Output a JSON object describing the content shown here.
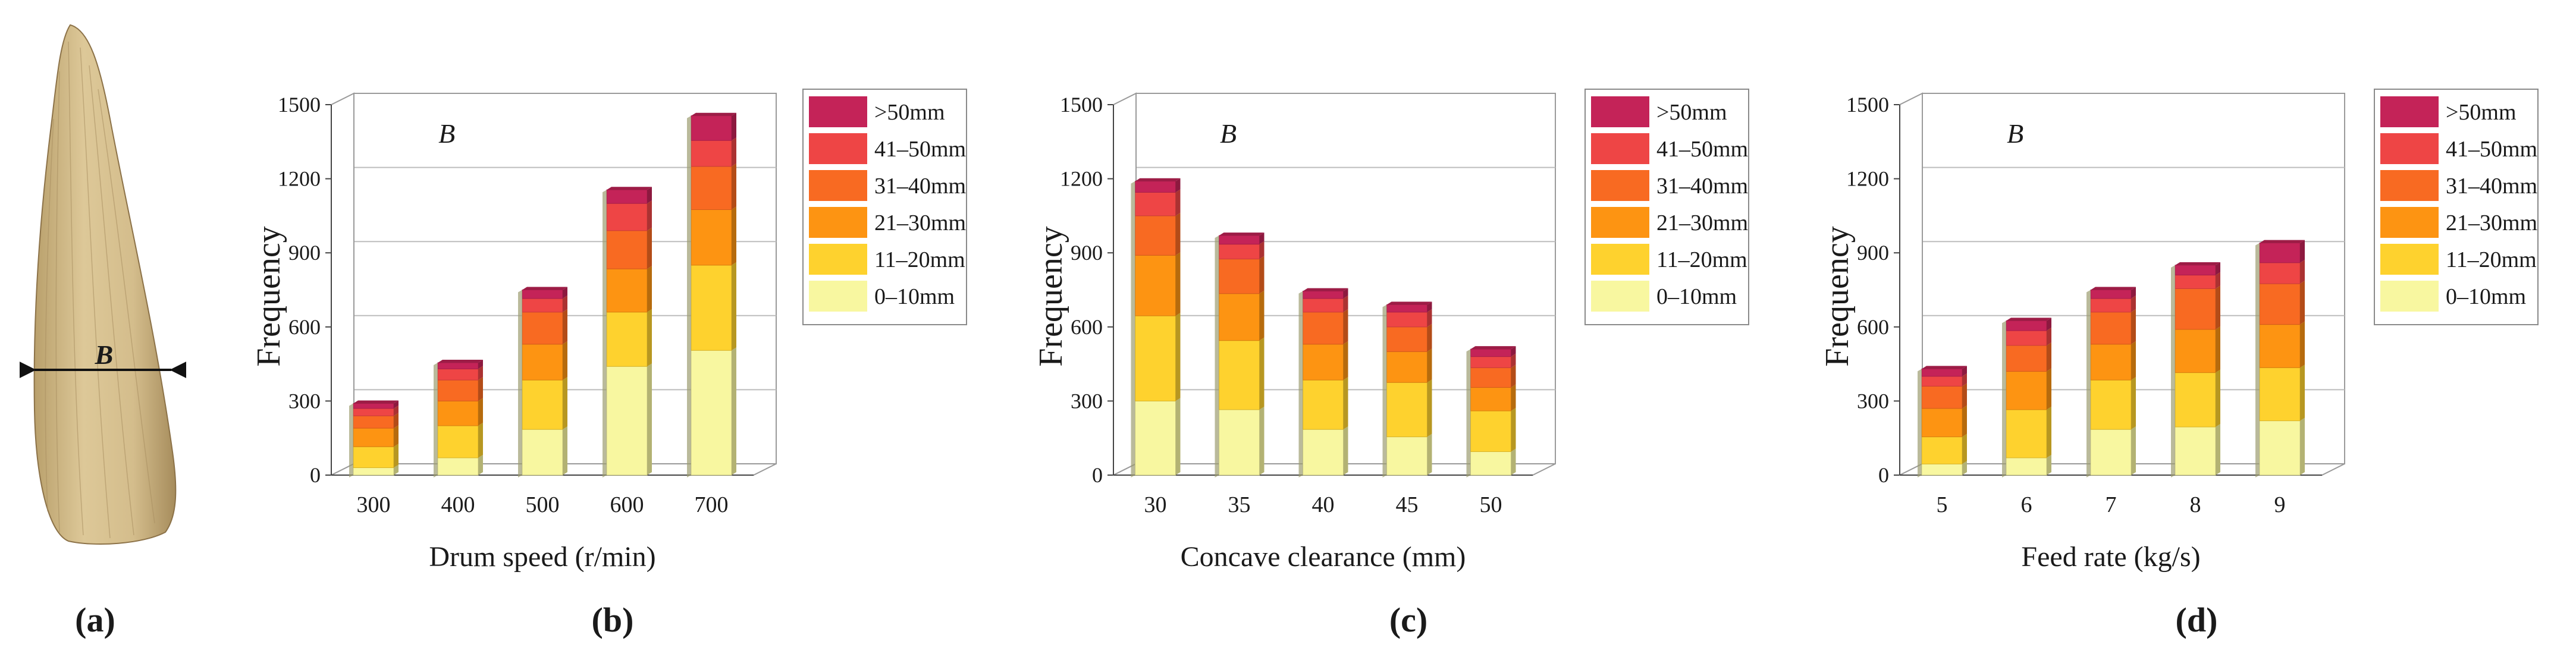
{
  "figure": {
    "panel_labels": [
      "(a)",
      "(b)",
      "(c)",
      "(d)"
    ],
    "leaf_width_label": "B"
  },
  "legend_entries": [
    ">50mm",
    "41–50mm",
    "31–40mm",
    "21–30mm",
    "11–20mm",
    "0–10mm"
  ],
  "colors": {
    "bins": [
      "#f8f7a0",
      "#fed22e",
      "#fd9412",
      "#f86a22",
      "#ee4545",
      "#c42358"
    ],
    "leaf": "#d2bc8a",
    "grid": "#bdbdbd",
    "axis": "#444444"
  },
  "chart_data": [
    {
      "type": "bar",
      "stacked": true,
      "title": "B",
      "xlabel": "Drum speed (r/min)",
      "ylabel": "Frequency",
      "ylim": [
        0,
        1500
      ],
      "yticks": [
        0,
        300,
        600,
        900,
        1200,
        1500
      ],
      "grid": true,
      "legend": "top-right",
      "categories": [
        "300",
        "400",
        "500",
        "600",
        "700"
      ],
      "series": [
        {
          "name": "0–10mm",
          "values": [
            30,
            70,
            185,
            440,
            505
          ]
        },
        {
          "name": "11–20mm",
          "values": [
            85,
            130,
            200,
            220,
            345
          ]
        },
        {
          "name": "21–30mm",
          "values": [
            75,
            100,
            145,
            175,
            225
          ]
        },
        {
          "name": "31–40mm",
          "values": [
            50,
            85,
            130,
            155,
            175
          ]
        },
        {
          "name": "41–50mm",
          "values": [
            30,
            45,
            55,
            110,
            105
          ]
        },
        {
          "name": ">50mm",
          "values": [
            20,
            25,
            35,
            55,
            100
          ]
        }
      ]
    },
    {
      "type": "bar",
      "stacked": true,
      "title": "B",
      "xlabel": "Concave clearance (mm)",
      "ylabel": "Frequency",
      "ylim": [
        0,
        1500
      ],
      "yticks": [
        0,
        300,
        600,
        900,
        1200,
        1500
      ],
      "grid": true,
      "legend": "top-right",
      "categories": [
        "30",
        "35",
        "40",
        "45",
        "50"
      ],
      "series": [
        {
          "name": "0–10mm",
          "values": [
            300,
            265,
            185,
            155,
            95
          ]
        },
        {
          "name": "11–20mm",
          "values": [
            345,
            280,
            200,
            220,
            165
          ]
        },
        {
          "name": "21–30mm",
          "values": [
            245,
            190,
            145,
            125,
            95
          ]
        },
        {
          "name": "31–40mm",
          "values": [
            160,
            140,
            130,
            100,
            80
          ]
        },
        {
          "name": "41–50mm",
          "values": [
            95,
            60,
            55,
            60,
            45
          ]
        },
        {
          "name": ">50mm",
          "values": [
            45,
            35,
            30,
            30,
            30
          ]
        }
      ]
    },
    {
      "type": "bar",
      "stacked": true,
      "title": "B",
      "xlabel": "Feed rate (kg/s)",
      "ylabel": "Frequency",
      "ylim": [
        0,
        1500
      ],
      "yticks": [
        0,
        300,
        600,
        900,
        1200,
        1500
      ],
      "grid": true,
      "legend": "top-right",
      "categories": [
        "5",
        "6",
        "7",
        "8",
        "9"
      ],
      "series": [
        {
          "name": "0–10mm",
          "values": [
            45,
            70,
            185,
            195,
            220
          ]
        },
        {
          "name": "11–20mm",
          "values": [
            110,
            195,
            200,
            220,
            215
          ]
        },
        {
          "name": "21–30mm",
          "values": [
            115,
            155,
            145,
            175,
            175
          ]
        },
        {
          "name": "31–40mm",
          "values": [
            90,
            105,
            130,
            165,
            165
          ]
        },
        {
          "name": "41–50mm",
          "values": [
            40,
            60,
            55,
            55,
            85
          ]
        },
        {
          "name": ">50mm",
          "values": [
            30,
            40,
            35,
            40,
            80
          ]
        }
      ]
    }
  ]
}
